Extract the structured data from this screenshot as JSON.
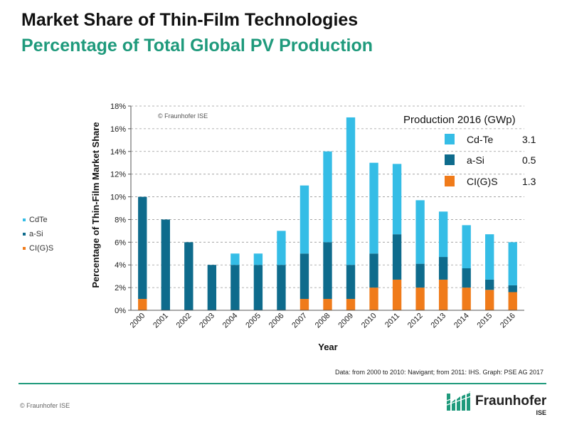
{
  "header": {
    "title": "Market Share of Thin-Film Technologies",
    "subtitle": "Percentage  of Total Global PV Production"
  },
  "side_legend": [
    {
      "label": "CdTe",
      "color": "#35bde6"
    },
    {
      "label": "a-Si",
      "color": "#0e6b8c"
    },
    {
      "label": "CI(G)S",
      "color": "#f07b1a"
    }
  ],
  "chart_data": {
    "type": "bar",
    "stacked": true,
    "categories": [
      "2000",
      "2001",
      "2002",
      "2003",
      "2004",
      "2005",
      "2006",
      "2007",
      "2008",
      "2009",
      "2010",
      "2011",
      "2012",
      "2013",
      "2014",
      "2015",
      "2016"
    ],
    "series": [
      {
        "name": "CI(G)S",
        "color": "#f07b1a",
        "values": [
          1.0,
          0.0,
          0.0,
          0.0,
          0.0,
          0.0,
          0.0,
          1.0,
          1.0,
          1.0,
          2.0,
          2.7,
          2.0,
          2.7,
          2.0,
          1.8,
          1.6
        ]
      },
      {
        "name": "a-Si",
        "color": "#0e6b8c",
        "values": [
          9.0,
          8.0,
          6.0,
          4.0,
          4.0,
          4.0,
          4.0,
          4.0,
          5.0,
          3.0,
          3.0,
          4.0,
          2.1,
          2.0,
          1.7,
          0.9,
          0.6
        ]
      },
      {
        "name": "CdTe",
        "color": "#35bde6",
        "values": [
          0.0,
          0.0,
          0.0,
          0.0,
          1.0,
          1.0,
          3.0,
          6.0,
          8.0,
          13.0,
          8.0,
          6.2,
          5.6,
          4.0,
          3.8,
          4.0,
          3.8
        ]
      }
    ],
    "xlabel": "Year",
    "ylabel": "Percentage of Thin-Film Market Share",
    "ylim": [
      0,
      18
    ],
    "yticks": [
      "0%",
      "2%",
      "4%",
      "6%",
      "8%",
      "10%",
      "12%",
      "14%",
      "16%",
      "18%"
    ],
    "grid": true,
    "watermark": "© Fraunhofer ISE",
    "legend": {
      "title": "Production 2016 (GWp)",
      "placement": "top-right",
      "entries": [
        {
          "label": "Cd-Te",
          "value": "3.1",
          "color": "#35bde6"
        },
        {
          "label": "a-Si",
          "value": "0.5",
          "color": "#0e6b8c"
        },
        {
          "label": "CI(G)S",
          "value": "1.3",
          "color": "#f07b1a"
        }
      ]
    }
  },
  "source_note": "Data: from 2000 to 2010: Navigant; from 2011: IHS. Graph: PSE AG 2017",
  "footer": {
    "copyright": "© Fraunhofer ISE",
    "logo_name": "Fraunhofer",
    "logo_sub": "ISE"
  }
}
